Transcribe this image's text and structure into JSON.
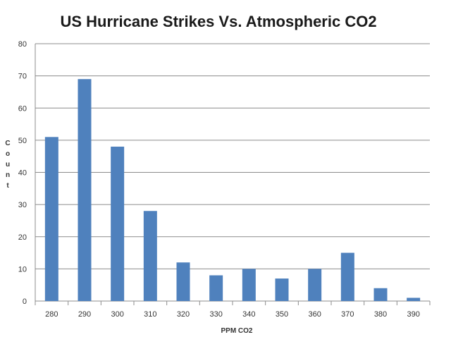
{
  "chart_data": {
    "type": "bar",
    "title": "US Hurricane Strikes Vs. Atmospheric CO2",
    "xlabel": "PPM CO2",
    "ylabel": "Count",
    "categories": [
      "280",
      "290",
      "300",
      "310",
      "320",
      "330",
      "340",
      "350",
      "360",
      "370",
      "380",
      "390"
    ],
    "values": [
      51,
      69,
      48,
      28,
      12,
      8,
      10,
      7,
      10,
      15,
      4,
      1
    ],
    "ylim": [
      0,
      80
    ],
    "yticks": [
      0,
      10,
      20,
      30,
      40,
      50,
      60,
      70,
      80
    ],
    "grid": true,
    "legend": "none",
    "bar_color": "#4f81bd"
  }
}
